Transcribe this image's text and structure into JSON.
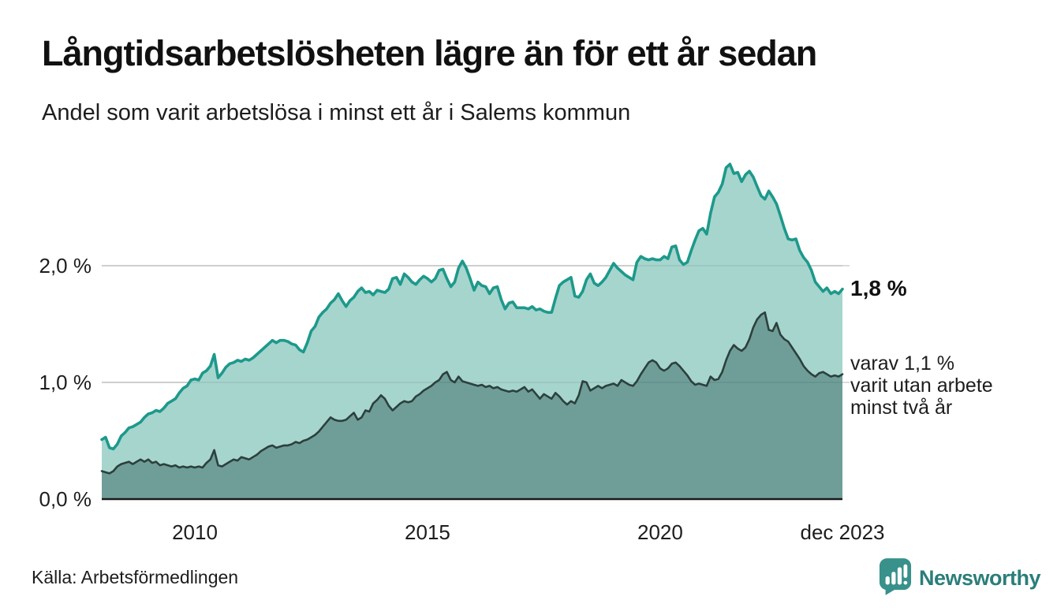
{
  "colors": {
    "ink": "#1a1a1a",
    "accent_teal": "#1d998b",
    "area_light": "#a6d5ce",
    "area_dark": "#6f9e99",
    "line_dark": "#2c403d",
    "gridline": "#dadcda",
    "logo_teal": "#2b7e79",
    "logo_icon_teal": "#38918a"
  },
  "footer": {
    "source": "Källa: Arbetsförmedlingen",
    "logo_text": "Newsworthy"
  },
  "chart_data": {
    "type": "area",
    "title": "Långtidsarbetslösheten lägre än för ett år sedan",
    "subtitle": "Andel som varit arbetslösa i minst ett år i Salems kommun",
    "xlabel": "",
    "ylabel": "",
    "x_unit": "month",
    "x_range": [
      "jan 2008",
      "dec 2023"
    ],
    "ylim": [
      0,
      3.0
    ],
    "grid": "horizontal",
    "legend_position": "none",
    "y_ticks": [
      {
        "label": "0,0 %",
        "value": 0
      },
      {
        "label": "1,0 %",
        "value": 1
      },
      {
        "label": "2,0 %",
        "value": 2
      }
    ],
    "x_ticks": [
      {
        "label": "2010",
        "month_index": 24
      },
      {
        "label": "2015",
        "month_index": 84
      },
      {
        "label": "2020",
        "month_index": 144
      },
      {
        "label": "dec 2023",
        "month_index": 191
      }
    ],
    "annotations": [
      {
        "text": "1,8 %",
        "series": "minst ett år",
        "at": "dec 2023"
      },
      {
        "text": "varav 1,1 %\nvarit utan arbete\nminst två år",
        "series": "minst två år",
        "at": "dec 2023"
      }
    ],
    "series": [
      {
        "name": "Arbetslösa minst ett år",
        "color": "#1d998b",
        "fill": "#a6d5ce",
        "latest_value_pct": 1.8,
        "values": [
          0.51,
          0.53,
          0.44,
          0.43,
          0.47,
          0.54,
          0.57,
          0.61,
          0.62,
          0.64,
          0.66,
          0.7,
          0.73,
          0.74,
          0.76,
          0.75,
          0.78,
          0.82,
          0.84,
          0.86,
          0.91,
          0.95,
          0.97,
          1.02,
          1.03,
          1.02,
          1.08,
          1.1,
          1.14,
          1.24,
          1.04,
          1.08,
          1.13,
          1.16,
          1.17,
          1.19,
          1.18,
          1.2,
          1.19,
          1.21,
          1.24,
          1.27,
          1.3,
          1.33,
          1.36,
          1.34,
          1.36,
          1.36,
          1.35,
          1.33,
          1.32,
          1.28,
          1.26,
          1.34,
          1.44,
          1.48,
          1.56,
          1.6,
          1.63,
          1.68,
          1.71,
          1.76,
          1.7,
          1.65,
          1.7,
          1.73,
          1.78,
          1.81,
          1.77,
          1.78,
          1.75,
          1.79,
          1.78,
          1.77,
          1.8,
          1.89,
          1.9,
          1.84,
          1.93,
          1.9,
          1.86,
          1.84,
          1.88,
          1.91,
          1.89,
          1.86,
          1.89,
          1.96,
          1.97,
          1.89,
          1.82,
          1.86,
          1.98,
          2.04,
          1.98,
          1.89,
          1.79,
          1.86,
          1.83,
          1.82,
          1.76,
          1.81,
          1.82,
          1.71,
          1.63,
          1.68,
          1.69,
          1.64,
          1.64,
          1.64,
          1.63,
          1.65,
          1.62,
          1.63,
          1.61,
          1.6,
          1.6,
          1.72,
          1.83,
          1.86,
          1.88,
          1.9,
          1.74,
          1.73,
          1.78,
          1.88,
          1.93,
          1.85,
          1.83,
          1.86,
          1.9,
          1.96,
          2.02,
          1.98,
          1.95,
          1.92,
          1.9,
          1.88,
          2.03,
          2.08,
          2.06,
          2.05,
          2.06,
          2.05,
          2.05,
          2.08,
          2.06,
          2.16,
          2.17,
          2.05,
          2.01,
          2.03,
          2.13,
          2.22,
          2.3,
          2.32,
          2.27,
          2.45,
          2.59,
          2.63,
          2.7,
          2.84,
          2.87,
          2.79,
          2.8,
          2.72,
          2.78,
          2.81,
          2.76,
          2.68,
          2.6,
          2.57,
          2.64,
          2.59,
          2.53,
          2.43,
          2.32,
          2.23,
          2.22,
          2.23,
          2.13,
          2.07,
          2.03,
          1.96,
          1.86,
          1.82,
          1.78,
          1.81,
          1.76,
          1.78,
          1.76,
          1.8
        ]
      },
      {
        "name": "varav arbetslösa minst två år",
        "color": "#2c403d",
        "fill": "#6f9e99",
        "latest_value_pct": 1.1,
        "values": [
          0.24,
          0.23,
          0.22,
          0.24,
          0.28,
          0.3,
          0.31,
          0.32,
          0.3,
          0.32,
          0.34,
          0.32,
          0.34,
          0.31,
          0.32,
          0.29,
          0.3,
          0.29,
          0.28,
          0.29,
          0.27,
          0.28,
          0.27,
          0.28,
          0.27,
          0.28,
          0.27,
          0.31,
          0.34,
          0.42,
          0.29,
          0.28,
          0.3,
          0.32,
          0.34,
          0.33,
          0.36,
          0.35,
          0.34,
          0.36,
          0.38,
          0.41,
          0.43,
          0.45,
          0.46,
          0.44,
          0.45,
          0.46,
          0.46,
          0.47,
          0.49,
          0.48,
          0.5,
          0.51,
          0.53,
          0.55,
          0.58,
          0.62,
          0.66,
          0.7,
          0.68,
          0.67,
          0.67,
          0.68,
          0.71,
          0.74,
          0.68,
          0.7,
          0.76,
          0.75,
          0.82,
          0.85,
          0.89,
          0.86,
          0.8,
          0.76,
          0.79,
          0.82,
          0.84,
          0.83,
          0.84,
          0.88,
          0.9,
          0.93,
          0.95,
          0.97,
          1.0,
          1.02,
          1.07,
          1.09,
          1.02,
          1.0,
          1.05,
          1.01,
          1.0,
          0.99,
          0.98,
          0.97,
          0.98,
          0.96,
          0.97,
          0.95,
          0.96,
          0.94,
          0.93,
          0.92,
          0.93,
          0.92,
          0.94,
          0.96,
          0.92,
          0.94,
          0.9,
          0.86,
          0.9,
          0.88,
          0.86,
          0.91,
          0.88,
          0.84,
          0.81,
          0.84,
          0.82,
          0.89,
          1.01,
          1.0,
          0.93,
          0.95,
          0.97,
          0.95,
          0.97,
          0.98,
          0.99,
          0.97,
          1.02,
          1.0,
          0.98,
          0.97,
          1.01,
          1.07,
          1.12,
          1.17,
          1.19,
          1.17,
          1.12,
          1.1,
          1.12,
          1.16,
          1.17,
          1.14,
          1.1,
          1.06,
          1.01,
          0.98,
          0.99,
          0.98,
          0.97,
          1.05,
          1.02,
          1.03,
          1.09,
          1.19,
          1.27,
          1.32,
          1.29,
          1.27,
          1.3,
          1.37,
          1.47,
          1.54,
          1.58,
          1.6,
          1.45,
          1.44,
          1.51,
          1.41,
          1.37,
          1.35,
          1.3,
          1.25,
          1.2,
          1.14,
          1.1,
          1.07,
          1.05,
          1.08,
          1.09,
          1.07,
          1.05,
          1.06,
          1.05,
          1.07
        ]
      }
    ]
  }
}
